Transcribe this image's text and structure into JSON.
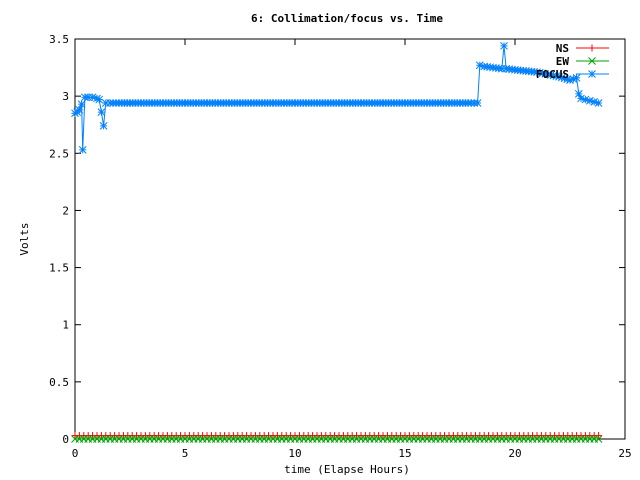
{
  "chart_data": {
    "type": "line",
    "title": "6: Collimation/focus vs. Time",
    "xlabel": "time (Elapse Hours)",
    "ylabel": "Volts",
    "xlim": [
      0,
      25
    ],
    "ylim": [
      0,
      3.5
    ],
    "xticks": [
      0,
      5,
      10,
      15,
      20,
      25
    ],
    "yticks": [
      0,
      0.5,
      1,
      1.5,
      2,
      2.5,
      3,
      3.5
    ],
    "xtick_labels": [
      "0",
      "5",
      "10",
      "15",
      "20",
      "25"
    ],
    "ytick_labels": [
      "0",
      "0.5",
      "1",
      "1.5",
      "2",
      "2.5",
      "3",
      "3.5"
    ],
    "grid": false,
    "legend_position": "top-right",
    "series": [
      {
        "name": "NS",
        "color": "#ff0000",
        "marker": "plus",
        "x_start": 0,
        "x_end": 23.8,
        "x_step": 0.2,
        "y_constant": 0.03
      },
      {
        "name": "EW",
        "color": "#00a000",
        "marker": "cross",
        "x_start": 0,
        "x_end": 23.8,
        "x_step": 0.2,
        "y_constant": 0.0
      },
      {
        "name": "FOCUS",
        "color": "#0080ff",
        "marker": "star",
        "points": [
          [
            0.0,
            2.85
          ],
          [
            0.1,
            2.86
          ],
          [
            0.2,
            2.88
          ],
          [
            0.3,
            2.93
          ],
          [
            0.35,
            2.53
          ],
          [
            0.45,
            2.99
          ],
          [
            0.6,
            2.99
          ],
          [
            0.8,
            2.99
          ],
          [
            1.0,
            2.98
          ],
          [
            1.1,
            2.97
          ],
          [
            1.2,
            2.86
          ],
          [
            1.3,
            2.74
          ],
          [
            1.4,
            2.94
          ],
          [
            1.6,
            2.94
          ],
          [
            2.0,
            2.94
          ],
          [
            3.0,
            2.94
          ],
          [
            4.0,
            2.94
          ],
          [
            5.0,
            2.94
          ],
          [
            6.0,
            2.94
          ],
          [
            7.0,
            2.94
          ],
          [
            8.0,
            2.94
          ],
          [
            9.0,
            2.94
          ],
          [
            10.0,
            2.94
          ],
          [
            11.0,
            2.94
          ],
          [
            12.0,
            2.94
          ],
          [
            13.0,
            2.94
          ],
          [
            14.0,
            2.94
          ],
          [
            15.0,
            2.94
          ],
          [
            16.0,
            2.94
          ],
          [
            17.0,
            2.94
          ],
          [
            18.0,
            2.94
          ],
          [
            18.3,
            2.94
          ],
          [
            18.4,
            3.27
          ],
          [
            18.6,
            3.26
          ],
          [
            19.0,
            3.25
          ],
          [
            19.4,
            3.24
          ],
          [
            19.5,
            3.44
          ],
          [
            19.6,
            3.24
          ],
          [
            20.0,
            3.23
          ],
          [
            20.5,
            3.22
          ],
          [
            21.0,
            3.21
          ],
          [
            21.5,
            3.19
          ],
          [
            22.0,
            3.17
          ],
          [
            22.5,
            3.14
          ],
          [
            22.8,
            3.16
          ],
          [
            22.9,
            3.02
          ],
          [
            23.0,
            2.98
          ],
          [
            23.2,
            2.97
          ],
          [
            23.4,
            2.96
          ],
          [
            23.6,
            2.95
          ],
          [
            23.8,
            2.94
          ]
        ]
      }
    ]
  }
}
